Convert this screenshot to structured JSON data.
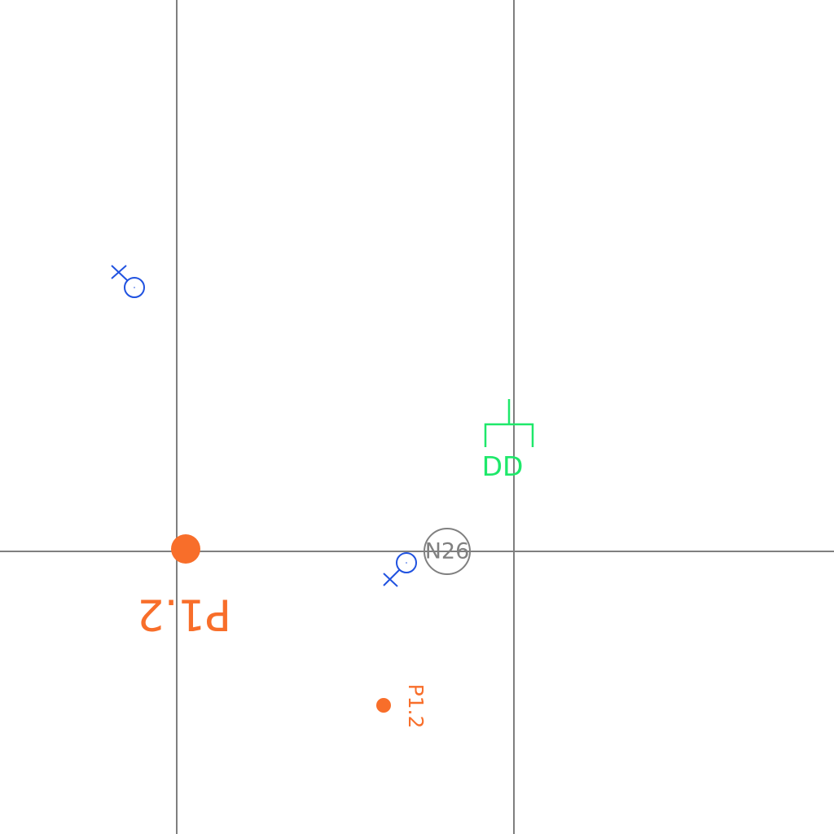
{
  "colors": {
    "background": "#ffffff",
    "grid": "#7f7f7f",
    "fixture": "#2052e0",
    "panel": "#f86e2a",
    "node": "#808080",
    "data_outlet": "#1ee86a"
  },
  "grid": {
    "vertical_line_count": 2,
    "horizontal_line_count": 1
  },
  "symbols": {
    "light_fixtures": [
      {
        "icon": "light-fixture-icon"
      },
      {
        "icon": "light-fixture-icon"
      }
    ],
    "panel_large": {
      "icon": "panel-dot-icon",
      "label": "P1.2"
    },
    "panel_small": {
      "icon": "panel-dot-icon",
      "label": "P1.2"
    },
    "node_tag": {
      "icon": "node-circle-icon",
      "label": "N26"
    },
    "data_outlet": {
      "icon": "data-outlet-icon",
      "label": "DD"
    }
  }
}
